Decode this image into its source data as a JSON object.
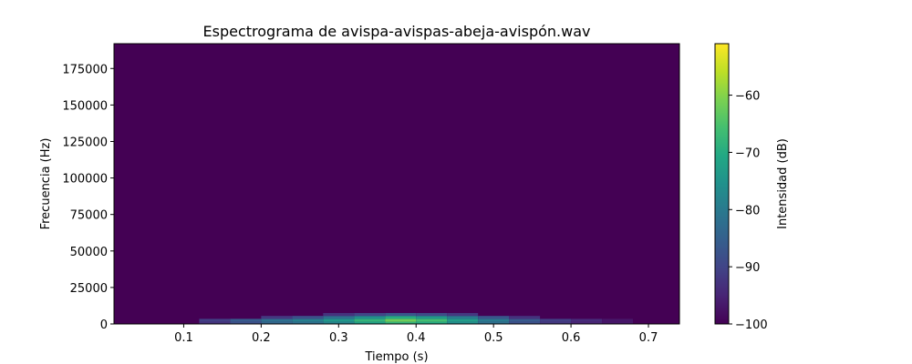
{
  "chart_data": {
    "type": "heatmap",
    "title": "Espectrograma de avispa-avispas-abeja-avispón.wav",
    "xlabel": "Tiempo (s)",
    "ylabel": "Frecuencia (Hz)",
    "xlim": [
      0.01,
      0.74
    ],
    "ylim": [
      0,
      192000
    ],
    "xticks": [
      0.1,
      0.2,
      0.3,
      0.4,
      0.5,
      0.6,
      0.7
    ],
    "xtick_labels": [
      "0.1",
      "0.2",
      "0.3",
      "0.4",
      "0.5",
      "0.6",
      "0.7"
    ],
    "yticks": [
      0,
      25000,
      50000,
      75000,
      100000,
      125000,
      150000,
      175000
    ],
    "ytick_labels": [
      "0",
      "25000",
      "50000",
      "75000",
      "100000",
      "125000",
      "150000",
      "175000"
    ],
    "colormap": "viridis",
    "background_value_db": -100,
    "colorbar": {
      "label": "Intensidad (dB)",
      "range": [
        -100,
        -51
      ],
      "ticks": [
        -100,
        -90,
        -80,
        -70,
        -60
      ],
      "tick_labels": [
        "−100",
        "−90",
        "−80",
        "−70",
        "−60"
      ]
    },
    "energy_bands": [
      {
        "freq_hz": 500,
        "cells": [
          {
            "t": 0.14,
            "db": -93
          },
          {
            "t": 0.18,
            "db": -88
          },
          {
            "t": 0.22,
            "db": -84
          },
          {
            "t": 0.26,
            "db": -82
          },
          {
            "t": 0.3,
            "db": -78
          },
          {
            "t": 0.34,
            "db": -72
          },
          {
            "t": 0.38,
            "db": -68
          },
          {
            "t": 0.42,
            "db": -70
          },
          {
            "t": 0.46,
            "db": -76
          },
          {
            "t": 0.5,
            "db": -82
          },
          {
            "t": 0.54,
            "db": -88
          },
          {
            "t": 0.58,
            "db": -92
          },
          {
            "t": 0.62,
            "db": -95
          },
          {
            "t": 0.66,
            "db": -97
          }
        ]
      },
      {
        "freq_hz": 2500,
        "cells": [
          {
            "t": 0.14,
            "db": -91
          },
          {
            "t": 0.18,
            "db": -86
          },
          {
            "t": 0.22,
            "db": -82
          },
          {
            "t": 0.26,
            "db": -79
          },
          {
            "t": 0.3,
            "db": -74
          },
          {
            "t": 0.34,
            "db": -68
          },
          {
            "t": 0.38,
            "db": -62
          },
          {
            "t": 0.42,
            "db": -66
          },
          {
            "t": 0.46,
            "db": -73
          },
          {
            "t": 0.5,
            "db": -80
          },
          {
            "t": 0.54,
            "db": -86
          },
          {
            "t": 0.58,
            "db": -91
          },
          {
            "t": 0.62,
            "db": -94
          },
          {
            "t": 0.66,
            "db": -97
          }
        ]
      },
      {
        "freq_hz": 4500,
        "cells": [
          {
            "t": 0.22,
            "db": -92
          },
          {
            "t": 0.26,
            "db": -88
          },
          {
            "t": 0.3,
            "db": -82
          },
          {
            "t": 0.34,
            "db": -76
          },
          {
            "t": 0.38,
            "db": -70
          },
          {
            "t": 0.42,
            "db": -74
          },
          {
            "t": 0.46,
            "db": -80
          },
          {
            "t": 0.5,
            "db": -87
          },
          {
            "t": 0.54,
            "db": -93
          }
        ]
      },
      {
        "freq_hz": 6500,
        "cells": [
          {
            "t": 0.3,
            "db": -93
          },
          {
            "t": 0.34,
            "db": -90
          },
          {
            "t": 0.38,
            "db": -87
          },
          {
            "t": 0.42,
            "db": -89
          },
          {
            "t": 0.46,
            "db": -92
          }
        ]
      }
    ]
  }
}
